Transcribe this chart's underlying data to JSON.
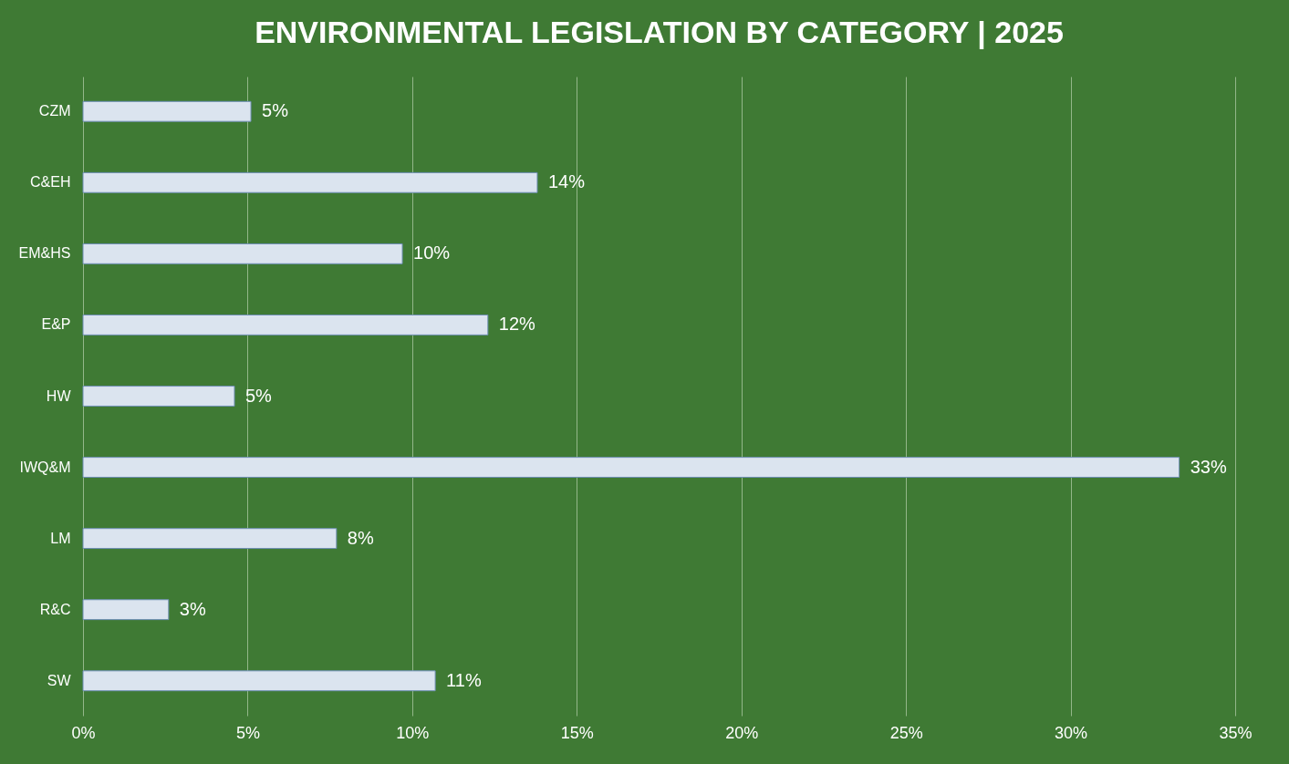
{
  "chart_data": {
    "type": "bar",
    "orientation": "horizontal",
    "title": "ENVIRONMENTAL LEGISLATION BY CATEGORY | 2025",
    "categories": [
      "CZM",
      "C&EH",
      "EM&HS",
      "E&P",
      "HW",
      "IWQ&M",
      "LM",
      "R&C",
      "SW"
    ],
    "values": [
      5.1,
      13.8,
      9.7,
      12.3,
      4.6,
      33.3,
      7.7,
      2.6,
      10.7
    ],
    "value_labels": [
      "5%",
      "14%",
      "10%",
      "12%",
      "5%",
      "33%",
      "8%",
      "3%",
      "11%"
    ],
    "color": "#dbe4ef",
    "xlim": [
      0,
      35
    ],
    "xticks": [
      {
        "value": 0,
        "label": "0%"
      },
      {
        "value": 5,
        "label": "5%"
      },
      {
        "value": 10,
        "label": "10%"
      },
      {
        "value": 15,
        "label": "15%"
      },
      {
        "value": 20,
        "label": "20%"
      },
      {
        "value": 25,
        "label": "25%"
      },
      {
        "value": 30,
        "label": "30%"
      },
      {
        "value": 35,
        "label": "35%"
      }
    ],
    "grid": "x"
  }
}
